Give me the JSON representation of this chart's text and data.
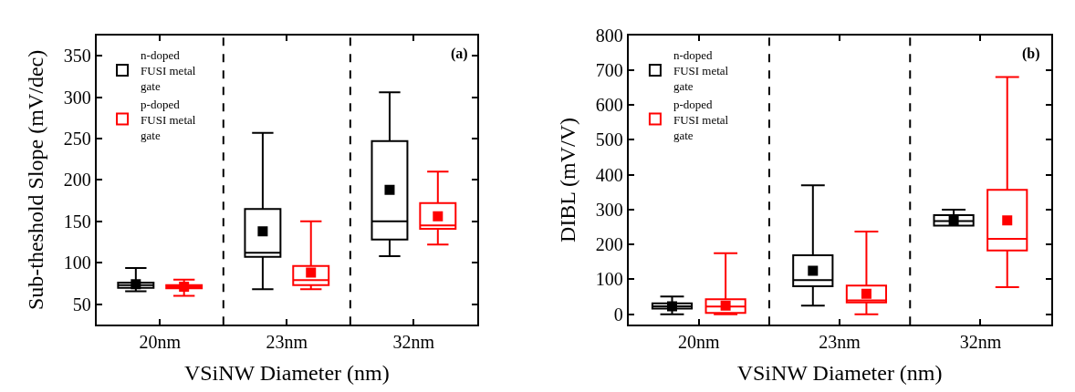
{
  "chart_data": [
    {
      "type": "box",
      "xlabel": "VSiNW Diameter (nm)",
      "ylabel": "Sub-theshold Slope (mV/dec)",
      "categories": [
        "20nm",
        "23nm",
        "32nm"
      ],
      "ylim": [
        25,
        375
      ],
      "yticks": [
        50,
        100,
        150,
        200,
        250,
        300,
        350
      ],
      "legend": "top left",
      "marker": "square",
      "annotations": [
        "(a)"
      ],
      "series": [
        {
          "name": "n-doped FUSI metal gate",
          "color": "#000000",
          "boxes": [
            {
              "low": 65.5,
              "q1": 69.6,
              "median": 73,
              "q3": 76,
              "high": 93.6,
              "mean": 74
            },
            {
              "low": 68,
              "q1": 107,
              "median": 112,
              "q3": 165,
              "high": 257,
              "mean": 138
            },
            {
              "low": 108,
              "q1": 128,
              "median": 150,
              "q3": 247,
              "high": 306,
              "mean": 188
            }
          ]
        },
        {
          "name": "p-doped FUSI metal gate",
          "color": "#ff0000",
          "boxes": [
            {
              "low": 60,
              "q1": 69,
              "median": 71,
              "q3": 73,
              "high": 79.6,
              "mean": 71
            },
            {
              "low": 68,
              "q1": 73,
              "median": 79,
              "q3": 96,
              "high": 150,
              "mean": 88
            },
            {
              "low": 122,
              "q1": 141,
              "median": 145,
              "q3": 172,
              "high": 210,
              "mean": 156
            }
          ]
        }
      ]
    },
    {
      "type": "box",
      "xlabel": "VSiNW Diameter (nm)",
      "ylabel": "DIBL (mV/V)",
      "categories": [
        "20nm",
        "23nm",
        "32nm"
      ],
      "ylim": [
        -30,
        800
      ],
      "yticks": [
        0,
        100,
        200,
        300,
        400,
        500,
        600,
        700,
        800
      ],
      "legend": "top left",
      "marker": "square",
      "annotations": [
        "(b)"
      ],
      "series": [
        {
          "name": "n-doped FUSI metal gate",
          "color": "#000000",
          "boxes": [
            {
              "low": 0,
              "q1": 16,
              "median": 23,
              "q3": 31,
              "high": 51,
              "mean": 23
            },
            {
              "low": 25,
              "q1": 80,
              "median": 98,
              "q3": 169,
              "high": 370,
              "mean": 125
            },
            {
              "low": 254,
              "q1": 254,
              "median": 267,
              "q3": 284,
              "high": 300,
              "mean": 269
            }
          ]
        },
        {
          "name": "p-doped FUSI metal gate",
          "color": "#ff0000",
          "boxes": [
            {
              "low": 0,
              "q1": 4,
              "median": 22,
              "q3": 43,
              "high": 175,
              "mean": 25
            },
            {
              "low": 0,
              "q1": 34,
              "median": 40,
              "q3": 82,
              "high": 237,
              "mean": 59
            },
            {
              "low": 78,
              "q1": 183,
              "median": 216,
              "q3": 357,
              "high": 680,
              "mean": 269
            }
          ]
        }
      ]
    }
  ]
}
